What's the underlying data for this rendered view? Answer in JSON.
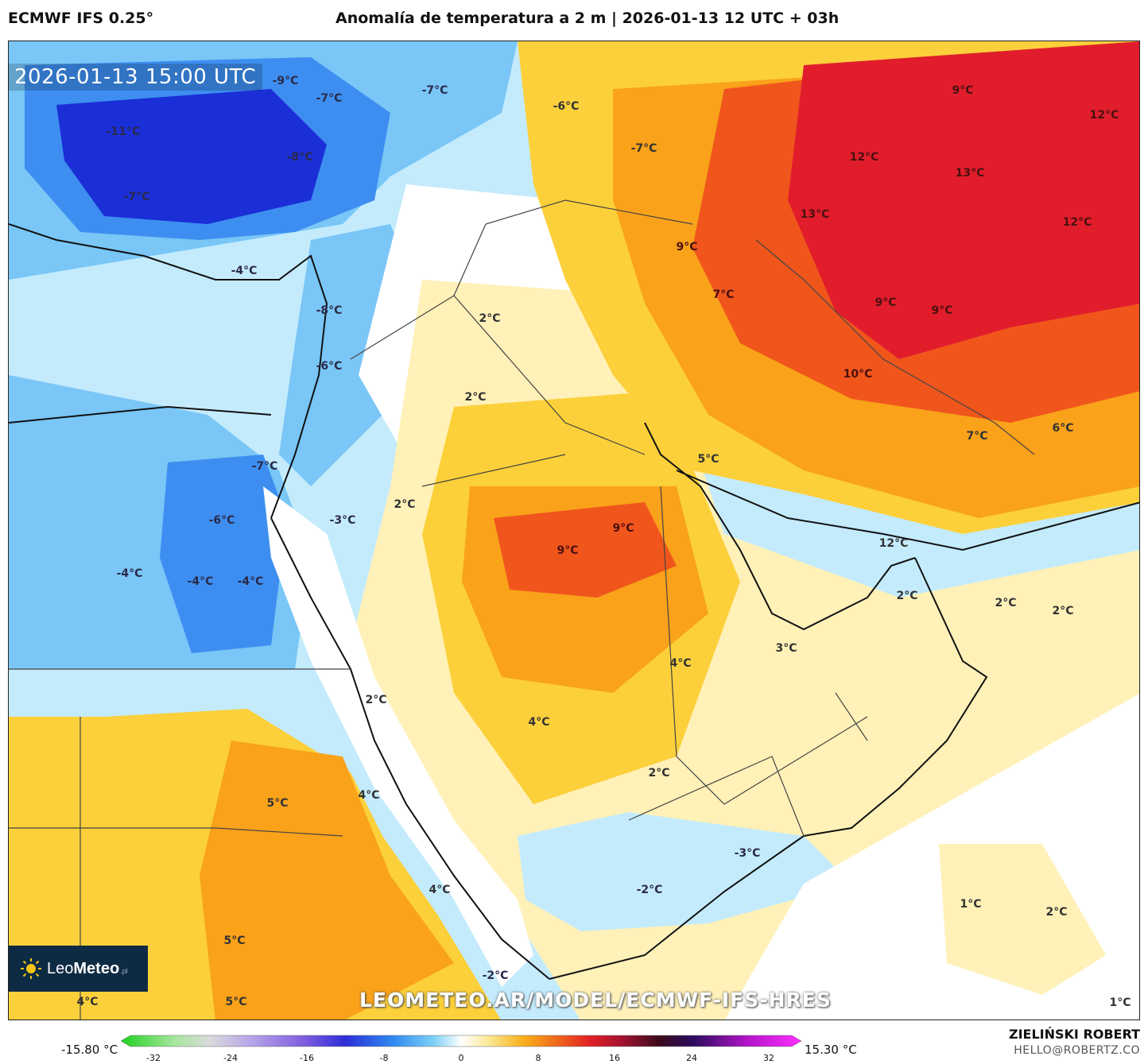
{
  "header": {
    "model_name": "ECMWF IFS 0.25°",
    "title": "Anomalía de temperatura a 2 m | 2026-01-13 12 UTC + 03h"
  },
  "map": {
    "timestamp": "2026-01-13 15:00 UTC",
    "watermark_url": "LEOMETEO.AR/MODEL/ECMWF-IFS-HRES",
    "logo": {
      "text_plain": "Leo",
      "text_bold": "Meteo",
      "tld": ".pl"
    },
    "labels": [
      "-9°C",
      "-7°C",
      "-7°C",
      "-11°C",
      "-8°C",
      "-7°C",
      "-6°C",
      "-7°C",
      "9°C",
      "12°C",
      "12°C",
      "13°C",
      "13°C",
      "12°C",
      "-4°C",
      "9°C",
      "-8°C",
      "7°C",
      "2°C",
      "9°C",
      "9°C",
      "-6°C",
      "10°C",
      "2°C",
      "-7°C",
      "5°C",
      "7°C",
      "6°C",
      "2°C",
      "-3°C",
      "-6°C",
      "9°C",
      "9°C",
      "12°C",
      "-4°C",
      "-4°C",
      "-4°C",
      "2°C",
      "2°C",
      "2°C",
      "3°C",
      "4°C",
      "2°C",
      "4°C",
      "2°C",
      "4°C",
      "5°C",
      "-3°C",
      "4°C",
      "-2°C",
      "1°C",
      "2°C",
      "5°C",
      "-2°C",
      "4°C",
      "5°C",
      "1°C"
    ],
    "colors": {
      "cold_deep": "#1a2fd6",
      "cold_mid": "#3d8ef0",
      "cold_light": "#79c6f7",
      "cool_pale": "#c4ebfc",
      "neutral": "#ffffff",
      "warm_pale": "#fff1b8",
      "warm_mid": "#fcd03a",
      "warm": "#f9a21a",
      "hot": "#f0561c",
      "hotter": "#e11d2c"
    }
  },
  "colorbar": {
    "min_label": "-15.80 °C",
    "max_label": "15.30 °C",
    "ticks": [
      "-32",
      "-24",
      "-16",
      "-8",
      "0",
      "8",
      "16",
      "24",
      "32"
    ]
  },
  "credits": {
    "author": "ZIELIŃSKI ROBERT",
    "email": "HELLO@ROBERTZ.CO"
  }
}
